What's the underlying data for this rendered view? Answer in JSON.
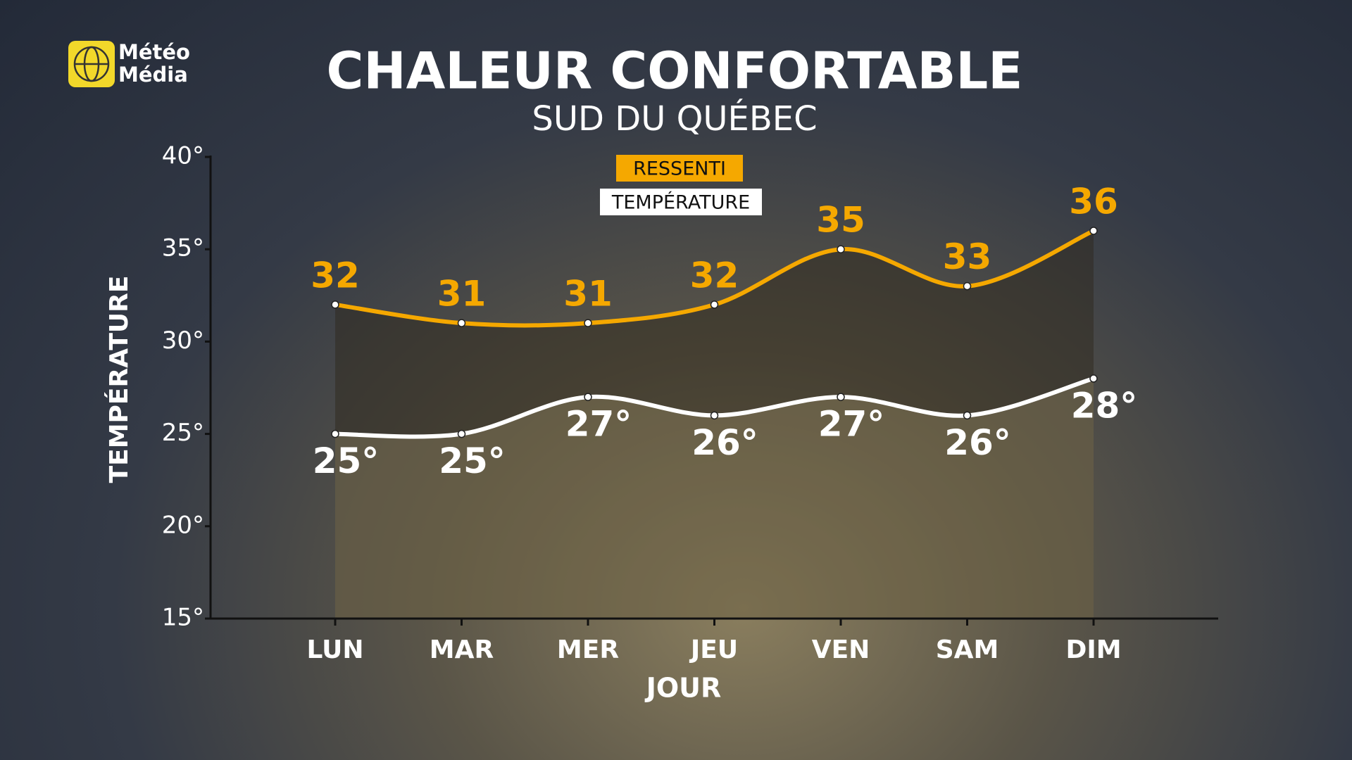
{
  "brand": {
    "lines": [
      "Météo",
      "Média"
    ]
  },
  "chart_data": {
    "type": "line",
    "title": "CHALEUR CONFORTABLE",
    "subtitle": "SUD DU QUÉBEC",
    "x_label": "JOUR",
    "y_label": "TEMPÉRATURE",
    "categories": [
      "LUN",
      "MAR",
      "MER",
      "JEU",
      "VEN",
      "SAM",
      "DIM"
    ],
    "series": [
      {
        "name": "RESSENTI",
        "color": "#f5a800",
        "values": [
          32,
          31,
          31,
          32,
          35,
          33,
          36
        ]
      },
      {
        "name": "TEMPÉRATURE",
        "color": "#ffffff",
        "values": [
          25,
          25,
          27,
          26,
          27,
          26,
          28
        ],
        "value_labels": [
          "25°",
          "25°",
          "27°",
          "26°",
          "27°",
          "26°",
          "28°"
        ]
      }
    ],
    "ylim": [
      15,
      40
    ],
    "yticks": [
      {
        "value": 15,
        "label": "15°"
      },
      {
        "value": 20,
        "label": "20°"
      },
      {
        "value": 25,
        "label": "25°"
      },
      {
        "value": 30,
        "label": "30°"
      },
      {
        "value": 35,
        "label": "35°"
      },
      {
        "value": 40,
        "label": "40°"
      }
    ]
  }
}
